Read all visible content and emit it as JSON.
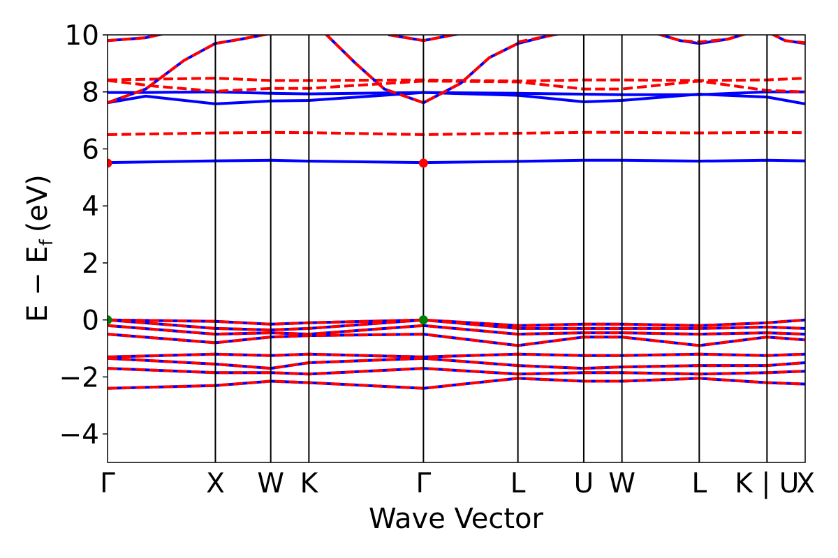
{
  "chart_data": {
    "type": "line",
    "xlabel": "Wave Vector",
    "ylabel": "E − E",
    "ylabel_sub": "f",
    "ylabel_unit": "(eV)",
    "ylim": [
      -5,
      10
    ],
    "yticks": [
      -4,
      -2,
      0,
      2,
      4,
      6,
      8,
      10
    ],
    "ytick_labels": [
      "−4",
      "−2",
      "0",
      "2",
      "4",
      "6",
      "8",
      "10"
    ],
    "xlim": [
      0,
      7.31
    ],
    "kpoints": [
      {
        "label": "Γ",
        "x": 0.0
      },
      {
        "label": "X",
        "x": 1.13
      },
      {
        "label": "W",
        "x": 1.71
      },
      {
        "label": "K",
        "x": 2.11
      },
      {
        "label": "Γ",
        "x": 3.31
      },
      {
        "label": "L",
        "x": 4.3
      },
      {
        "label": "U",
        "x": 4.99
      },
      {
        "label": "W",
        "x": 5.39
      },
      {
        "label": "L",
        "x": 6.2
      },
      {
        "label": "K | U",
        "x": 6.91
      },
      {
        "label": "X",
        "x": 7.31
      }
    ],
    "series_styles": [
      {
        "style": "solid",
        "color": "#0000ff"
      },
      {
        "style": "dashed",
        "color": "#ff0000"
      }
    ],
    "markers": [
      {
        "x": 0.0,
        "y": 5.5,
        "color": "#ff0000"
      },
      {
        "x": 3.31,
        "y": 5.5,
        "color": "#ff0000"
      },
      {
        "x": 0.0,
        "y": 0.0,
        "color": "#008000"
      },
      {
        "x": 3.31,
        "y": 0.0,
        "color": "#008000"
      }
    ],
    "series": [
      {
        "style": "solid",
        "x": [
          0,
          1.13,
          1.71,
          2.11,
          3.31,
          4.3,
          4.99,
          5.39,
          6.2,
          6.91,
          7.31
        ],
        "y": [
          5.52,
          5.58,
          5.6,
          5.57,
          5.52,
          5.56,
          5.6,
          5.6,
          5.57,
          5.6,
          5.58
        ]
      },
      {
        "style": "dashed",
        "x": [
          0,
          1.13,
          1.71,
          2.11,
          3.31,
          4.3,
          4.99,
          5.39,
          6.2,
          6.91,
          7.31
        ],
        "y": [
          6.5,
          6.56,
          6.58,
          6.57,
          6.5,
          6.55,
          6.58,
          6.58,
          6.56,
          6.58,
          6.57
        ]
      },
      {
        "style": "solid",
        "x": [
          0,
          0.4,
          1.13,
          1.71,
          2.11,
          3.31,
          4.3,
          4.99,
          5.39,
          6.2,
          6.91,
          7.31
        ],
        "y": [
          7.98,
          7.98,
          8.0,
          7.95,
          7.93,
          7.98,
          7.95,
          7.92,
          7.9,
          7.9,
          8.0,
          8.0
        ]
      },
      {
        "style": "solid",
        "x": [
          0,
          0.4,
          1.13,
          1.71,
          2.11,
          3.31,
          4.3,
          4.99,
          5.39,
          6.2,
          6.91,
          7.31
        ],
        "y": [
          7.62,
          7.85,
          7.58,
          7.68,
          7.7,
          7.98,
          7.88,
          7.65,
          7.7,
          7.92,
          7.82,
          7.58
        ]
      },
      {
        "style": "dashed",
        "x": [
          0,
          1.13,
          1.71,
          2.11,
          3.31,
          4.3,
          4.99,
          5.39,
          6.2,
          6.91,
          7.31
        ],
        "y": [
          8.42,
          8.48,
          8.4,
          8.4,
          8.42,
          8.38,
          8.42,
          8.42,
          8.4,
          8.42,
          8.48
        ]
      },
      {
        "style": "dashed",
        "x": [
          0,
          0.5,
          1.13,
          1.71,
          2.11,
          3.31,
          4.3,
          4.99,
          5.39,
          6.2,
          6.91,
          7.31
        ],
        "y": [
          8.4,
          8.2,
          8.02,
          8.12,
          8.12,
          8.38,
          8.35,
          8.1,
          8.1,
          8.38,
          8.05,
          8.0
        ]
      },
      {
        "style": "solid",
        "x": [
          0,
          0.4,
          0.8,
          1.13,
          1.4,
          1.71
        ],
        "y": [
          7.62,
          8.1,
          9.1,
          9.7,
          9.85,
          10.05
        ]
      },
      {
        "style": "dashed",
        "x": [
          0,
          0.4,
          0.8,
          1.13,
          1.4,
          1.71
        ],
        "y": [
          7.62,
          8.1,
          9.1,
          9.7,
          9.85,
          10.05
        ]
      },
      {
        "style": "solid",
        "x": [
          2.28,
          2.6,
          2.9,
          3.31,
          3.7,
          4.0,
          4.3
        ],
        "y": [
          10.05,
          9.0,
          8.1,
          7.62,
          8.3,
          9.2,
          9.7
        ]
      },
      {
        "style": "dashed",
        "x": [
          2.28,
          2.6,
          2.9,
          3.31,
          3.7,
          4.0,
          4.3
        ],
        "y": [
          10.05,
          9.0,
          8.1,
          7.62,
          8.3,
          9.2,
          9.7
        ]
      },
      {
        "style": "solid",
        "x": [
          0,
          0.4,
          0.6
        ],
        "y": [
          9.8,
          9.9,
          10.05
        ]
      },
      {
        "style": "dashed",
        "x": [
          0,
          0.4,
          0.6
        ],
        "y": [
          9.8,
          9.9,
          10.05
        ]
      },
      {
        "style": "solid",
        "x": [
          2.95,
          3.31,
          3.7
        ],
        "y": [
          10.0,
          9.8,
          10.05
        ]
      },
      {
        "style": "dashed",
        "x": [
          2.95,
          3.31,
          3.7
        ],
        "y": [
          10.0,
          9.8,
          10.05
        ]
      },
      {
        "style": "solid",
        "x": [
          4.3,
          4.6,
          4.75
        ],
        "y": [
          9.7,
          9.95,
          10.05
        ]
      },
      {
        "style": "dashed",
        "x": [
          4.3,
          4.6,
          4.75
        ],
        "y": [
          9.75,
          9.95,
          10.05
        ]
      },
      {
        "style": "solid",
        "x": [
          5.75,
          6.0,
          6.2,
          6.5,
          6.7
        ],
        "y": [
          10.05,
          9.8,
          9.7,
          9.85,
          10.05
        ]
      },
      {
        "style": "dashed",
        "x": [
          5.75,
          6.0,
          6.2,
          6.5,
          6.7
        ],
        "y": [
          10.05,
          9.8,
          9.75,
          9.85,
          10.05
        ]
      },
      {
        "style": "solid",
        "x": [
          6.95,
          7.1,
          7.31
        ],
        "y": [
          10.05,
          9.8,
          9.7
        ]
      },
      {
        "style": "dashed",
        "x": [
          6.95,
          7.1,
          7.31
        ],
        "y": [
          10.05,
          9.8,
          9.72
        ]
      },
      {
        "style": "solid",
        "x": [
          0,
          1.13,
          1.71,
          2.11,
          3.31,
          4.3,
          4.99,
          5.39,
          6.2,
          6.91,
          7.31
        ],
        "y": [
          0.0,
          -0.05,
          -0.15,
          -0.1,
          0.0,
          -0.2,
          -0.15,
          -0.15,
          -0.2,
          -0.1,
          0.0
        ]
      },
      {
        "style": "dashed",
        "x": [
          0,
          1.13,
          1.71,
          2.11,
          3.31,
          4.3,
          4.99,
          5.39,
          6.2,
          6.91,
          7.31
        ],
        "y": [
          0.0,
          -0.05,
          -0.15,
          -0.1,
          0.0,
          -0.2,
          -0.15,
          -0.15,
          -0.2,
          -0.1,
          0.0
        ]
      },
      {
        "style": "solid",
        "x": [
          0,
          1.13,
          1.71,
          2.11,
          3.31,
          4.3,
          4.99,
          5.39,
          6.2,
          6.91,
          7.31
        ],
        "y": [
          0.0,
          -0.3,
          -0.35,
          -0.3,
          0.0,
          -0.3,
          -0.3,
          -0.3,
          -0.3,
          -0.25,
          -0.3
        ]
      },
      {
        "style": "dashed",
        "x": [
          0,
          1.13,
          1.71,
          2.11,
          3.31,
          4.3,
          4.99,
          5.39,
          6.2,
          6.91,
          7.31
        ],
        "y": [
          0.0,
          -0.3,
          -0.35,
          -0.3,
          0.0,
          -0.3,
          -0.3,
          -0.3,
          -0.3,
          -0.25,
          -0.3
        ]
      },
      {
        "style": "solid",
        "x": [
          0,
          1.13,
          1.71,
          2.11,
          3.31,
          4.3,
          4.99,
          5.39,
          6.2,
          6.91,
          7.31
        ],
        "y": [
          -0.2,
          -0.5,
          -0.45,
          -0.5,
          -0.2,
          -0.5,
          -0.45,
          -0.45,
          -0.5,
          -0.45,
          -0.5
        ]
      },
      {
        "style": "dashed",
        "x": [
          0,
          1.13,
          1.71,
          2.11,
          3.31,
          4.3,
          4.99,
          5.39,
          6.2,
          6.91,
          7.31
        ],
        "y": [
          -0.2,
          -0.5,
          -0.45,
          -0.5,
          -0.2,
          -0.5,
          -0.45,
          -0.45,
          -0.5,
          -0.45,
          -0.5
        ]
      },
      {
        "style": "solid",
        "x": [
          0,
          1.13,
          1.71,
          2.11,
          3.31,
          4.3,
          4.99,
          5.39,
          6.2,
          6.91,
          7.31
        ],
        "y": [
          -0.5,
          -0.8,
          -0.6,
          -0.55,
          -0.5,
          -0.9,
          -0.6,
          -0.6,
          -0.9,
          -0.6,
          -0.7
        ]
      },
      {
        "style": "dashed",
        "x": [
          0,
          1.13,
          1.71,
          2.11,
          3.31,
          4.3,
          4.99,
          5.39,
          6.2,
          6.91,
          7.31
        ],
        "y": [
          -0.5,
          -0.8,
          -0.6,
          -0.55,
          -0.5,
          -0.9,
          -0.6,
          -0.6,
          -0.9,
          -0.6,
          -0.7
        ]
      },
      {
        "style": "solid",
        "x": [
          0,
          1.13,
          1.71,
          2.11,
          3.31,
          4.3,
          4.99,
          5.39,
          6.2,
          6.91,
          7.31
        ],
        "y": [
          -1.3,
          -1.2,
          -1.25,
          -1.2,
          -1.3,
          -1.2,
          -1.25,
          -1.25,
          -1.2,
          -1.25,
          -1.2
        ]
      },
      {
        "style": "dashed",
        "x": [
          0,
          1.13,
          1.71,
          2.11,
          3.31,
          4.3,
          4.99,
          5.39,
          6.2,
          6.91,
          7.31
        ],
        "y": [
          -1.3,
          -1.2,
          -1.25,
          -1.2,
          -1.3,
          -1.2,
          -1.25,
          -1.25,
          -1.2,
          -1.25,
          -1.2
        ]
      },
      {
        "style": "solid",
        "x": [
          0,
          1.13,
          1.71,
          2.11,
          3.31,
          4.3,
          4.99,
          5.39,
          6.2,
          6.91,
          7.31
        ],
        "y": [
          -1.35,
          -1.55,
          -1.7,
          -1.5,
          -1.35,
          -1.6,
          -1.7,
          -1.65,
          -1.6,
          -1.6,
          -1.5
        ]
      },
      {
        "style": "dashed",
        "x": [
          0,
          1.13,
          1.71,
          2.11,
          3.31,
          4.3,
          4.99,
          5.39,
          6.2,
          6.91,
          7.31
        ],
        "y": [
          -1.35,
          -1.55,
          -1.7,
          -1.5,
          -1.35,
          -1.6,
          -1.7,
          -1.65,
          -1.6,
          -1.6,
          -1.5
        ]
      },
      {
        "style": "solid",
        "x": [
          0,
          1.13,
          1.71,
          2.11,
          3.31,
          4.3,
          4.99,
          5.39,
          6.2,
          6.91,
          7.31
        ],
        "y": [
          -1.7,
          -1.85,
          -1.85,
          -1.9,
          -1.7,
          -1.9,
          -1.85,
          -1.85,
          -1.9,
          -1.85,
          -1.8
        ]
      },
      {
        "style": "dashed",
        "x": [
          0,
          1.13,
          1.71,
          2.11,
          3.31,
          4.3,
          4.99,
          5.39,
          6.2,
          6.91,
          7.31
        ],
        "y": [
          -1.7,
          -1.85,
          -1.85,
          -1.9,
          -1.7,
          -1.9,
          -1.85,
          -1.85,
          -1.9,
          -1.85,
          -1.8
        ]
      },
      {
        "style": "solid",
        "x": [
          0,
          1.13,
          1.71,
          2.11,
          3.31,
          4.3,
          4.99,
          5.39,
          6.2,
          6.91,
          7.31
        ],
        "y": [
          -2.4,
          -2.3,
          -2.15,
          -2.2,
          -2.4,
          -2.05,
          -2.15,
          -2.15,
          -2.05,
          -2.2,
          -2.25
        ]
      },
      {
        "style": "dashed",
        "x": [
          0,
          1.13,
          1.71,
          2.11,
          3.31,
          4.3,
          4.99,
          5.39,
          6.2,
          6.91,
          7.31
        ],
        "y": [
          -2.4,
          -2.3,
          -2.15,
          -2.2,
          -2.4,
          -2.05,
          -2.15,
          -2.15,
          -2.05,
          -2.2,
          -2.25
        ]
      }
    ]
  }
}
